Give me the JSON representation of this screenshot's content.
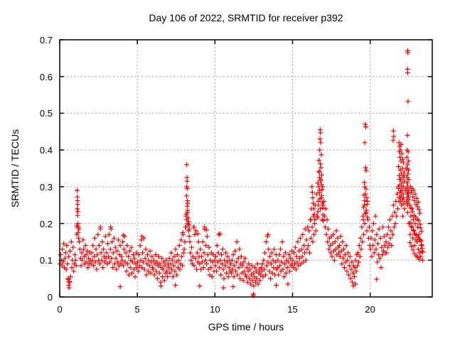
{
  "chart_data": {
    "type": "scatter",
    "title": "Day 106 of 2022, SRMTID for receiver p392",
    "xlabel": "GPS time / hours",
    "ylabel": "SRMTID / TECUs",
    "xlim": [
      0,
      24
    ],
    "ylim": [
      0,
      0.7
    ],
    "xticks": {
      "values": [
        0,
        5,
        10,
        15,
        20
      ],
      "labels": [
        "0",
        "5",
        "10",
        "15",
        "20"
      ]
    },
    "yticks": {
      "values": [
        0,
        0.1,
        0.2,
        0.3,
        0.4,
        0.5,
        0.6,
        0.7
      ],
      "labels": [
        "0",
        "0.1",
        "0.2",
        "0.3",
        "0.4",
        "0.5",
        "0.6",
        "0.7"
      ]
    },
    "grid_x": [
      5,
      10,
      15,
      20
    ],
    "grid_y": [
      0.1,
      0.2,
      0.3,
      0.4,
      0.5,
      0.6
    ],
    "grid_color": "#a0a0a0",
    "marker": {
      "shape": "plus",
      "color": "#ff0000",
      "size": 7
    },
    "points_base": {
      "x0": 0.02,
      "dx": 0.04,
      "y": [
        0.09,
        0.115,
        0.1,
        0.085,
        0.13,
        0.095,
        0.145,
        0.08,
        0.105,
        0.12,
        0.075,
        0.14,
        0.09,
        0.048,
        0.11,
        0.042,
        0.125,
        0.055,
        0.15,
        0.08,
        0.1,
        0.135,
        0.07,
        0.09,
        0.115,
        0.1,
        0.085,
        0.17,
        0.19,
        0.175,
        0.16,
        0.15,
        0.13,
        0.105,
        0.085,
        0.12,
        0.1,
        0.155,
        0.13,
        0.11,
        0.09,
        0.14,
        0.115,
        0.095,
        0.125,
        0.08,
        0.105,
        0.09,
        0.12,
        0.1,
        0.09,
        0.12,
        0.1,
        0.14,
        0.085,
        0.11,
        0.16,
        0.095,
        0.13,
        0.075,
        0.115,
        0.17,
        0.1,
        0.14,
        0.09,
        0.185,
        0.12,
        0.1,
        0.15,
        0.08,
        0.13,
        0.11,
        0.095,
        0.165,
        0.105,
        0.12,
        0.09,
        0.145,
        0.11,
        0.17,
        0.095,
        0.13,
        0.185,
        0.105,
        0.15,
        0.08,
        0.12,
        0.16,
        0.09,
        0.135,
        0.105,
        0.075,
        0.125,
        0.095,
        0.155,
        0.085,
        0.115,
        0.14,
        0.09,
        0.11,
        0.1,
        0.15,
        0.085,
        0.13,
        0.165,
        0.095,
        0.12,
        0.07,
        0.14,
        0.09,
        0.11,
        0.06,
        0.125,
        0.08,
        0.1,
        0.135,
        0.065,
        0.095,
        0.115,
        0.075,
        0.105,
        0.055,
        0.09,
        0.12,
        0.08,
        0.095,
        0.07,
        0.115,
        0.085,
        0.14,
        0.1,
        0.155,
        0.08,
        0.12,
        0.095,
        0.16,
        0.075,
        0.105,
        0.13,
        0.06,
        0.09,
        0.115,
        0.07,
        0.1,
        0.085,
        0.125,
        0.065,
        0.095,
        0.11,
        0.08,
        0.075,
        0.1,
        0.06,
        0.09,
        0.115,
        0.07,
        0.095,
        0.05,
        0.085,
        0.11,
        0.065,
        0.09,
        0.04,
        0.08,
        0.105,
        0.055,
        0.075,
        0.095,
        0.045,
        0.085,
        0.065,
        0.1,
        0.07,
        0.055,
        0.09,
        0.08,
        0.105,
        0.065,
        0.09,
        0.12,
        0.075,
        0.1,
        0.055,
        0.085,
        0.11,
        0.07,
        0.13,
        0.095,
        0.06,
        0.115,
        0.08,
        0.1,
        0.14,
        0.075,
        0.09,
        0.155,
        0.11,
        0.085,
        0.17,
        0.12,
        0.13,
        0.15,
        0.19,
        0.22,
        0.21,
        0.23,
        0.2,
        0.18,
        0.165,
        0.15,
        0.12,
        0.1,
        0.135,
        0.09,
        0.11,
        0.19,
        0.085,
        0.17,
        0.105,
        0.18,
        0.075,
        0.12,
        0.095,
        0.15,
        0.11,
        0.09,
        0.13,
        0.075,
        0.11,
        0.095,
        0.15,
        0.08,
        0.12,
        0.185,
        0.1,
        0.14,
        0.09,
        0.165,
        0.115,
        0.075,
        0.135,
        0.06,
        0.1,
        0.08,
        0.12,
        0.055,
        0.095,
        0.115,
        0.07,
        0.1,
        0.085,
        0.11,
        0.07,
        0.14,
        0.095,
        0.12,
        0.17,
        0.08,
        0.1,
        0.06,
        0.115,
        0.09,
        0.13,
        0.075,
        0.05,
        0.1,
        0.085,
        0.12,
        0.065,
        0.095,
        0.11,
        0.055,
        0.08,
        0.1,
        0.07,
        0.09,
        0.065,
        0.1,
        0.075,
        0.115,
        0.055,
        0.085,
        0.125,
        0.07,
        0.095,
        0.15,
        0.06,
        0.105,
        0.08,
        0.13,
        0.05,
        0.09,
        0.11,
        0.065,
        0.085,
        0.045,
        0.095,
        0.07,
        0.105,
        0.06,
        0.055,
        0.08,
        0.04,
        0.07,
        0.09,
        0.05,
        0.075,
        0.035,
        0.06,
        0.085,
        0.045,
        0.065,
        0.03,
        0.055,
        0.08,
        0.04,
        0.07,
        0.05,
        0.09,
        0.035,
        0.065,
        0.075,
        0.045,
        0.06,
        0.08,
        0.07,
        0.09,
        0.055,
        0.1,
        0.075,
        0.12,
        0.06,
        0.15,
        0.085,
        0.165,
        0.095,
        0.13,
        0.07,
        0.11,
        0.05,
        0.09,
        0.12,
        0.065,
        0.1,
        0.08,
        0.13,
        0.06,
        0.095,
        0.115,
        0.075,
        0.08,
        0.1,
        0.06,
        0.115,
        0.085,
        0.13,
        0.07,
        0.095,
        0.15,
        0.075,
        0.11,
        0.055,
        0.09,
        0.12,
        0.065,
        0.1,
        0.08,
        0.035,
        0.095,
        0.115,
        0.07,
        0.105,
        0.085,
        0.125,
        0.09,
        0.1,
        0.08,
        0.12,
        0.09,
        0.135,
        0.075,
        0.11,
        0.095,
        0.15,
        0.085,
        0.125,
        0.105,
        0.16,
        0.09,
        0.13,
        0.11,
        0.17,
        0.095,
        0.14,
        0.12,
        0.185,
        0.1,
        0.155,
        0.13,
        0.19,
        0.14,
        0.18,
        0.12,
        0.21,
        0.16,
        0.24,
        0.19,
        0.15,
        0.22,
        0.17,
        0.2,
        0.25,
        0.18,
        0.28,
        0.22,
        0.31,
        0.26,
        0.34,
        0.29,
        0.24,
        0.32,
        0.27,
        0.21,
        0.3,
        0.25,
        0.26,
        0.22,
        0.19,
        0.24,
        0.17,
        0.21,
        0.15,
        0.185,
        0.13,
        0.16,
        0.14,
        0.12,
        0.165,
        0.11,
        0.145,
        0.17,
        0.125,
        0.1,
        0.15,
        0.13,
        0.18,
        0.115,
        0.16,
        0.135,
        0.12,
        0.14,
        0.11,
        0.165,
        0.125,
        0.09,
        0.15,
        0.105,
        0.13,
        0.08,
        0.115,
        0.095,
        0.14,
        0.07,
        0.1,
        0.12,
        0.06,
        0.085,
        0.11,
        0.05,
        0.075,
        0.095,
        0.04,
        0.065,
        0.085,
        0.055,
        0.08,
        0.1,
        0.07,
        0.115,
        0.085,
        0.12,
        0.095,
        0.14,
        0.11,
        0.16,
        0.13,
        0.19,
        0.15,
        0.22,
        0.17,
        0.25,
        0.2,
        0.28,
        0.23,
        0.18,
        0.26,
        0.21,
        0.16,
        0.19,
        0.14,
        0.13,
        0.16,
        0.11,
        0.18,
        0.14,
        0.2,
        0.12,
        0.155,
        0.22,
        0.13,
        0.17,
        0.095,
        0.145,
        0.115,
        0.185,
        0.105,
        0.16,
        0.08,
        0.135,
        0.115,
        0.19,
        0.125,
        0.165,
        0.14,
        0.12,
        0.15,
        0.12,
        0.17,
        0.135,
        0.19,
        0.145,
        0.21,
        0.16,
        0.18,
        0.14,
        0.22,
        0.17,
        0.25,
        0.19,
        0.23,
        0.2,
        0.26,
        0.22,
        0.28,
        0.24,
        0.3,
        0.26,
        0.32,
        0.27,
        0.29,
        0.25,
        0.3,
        0.22,
        0.27,
        0.33,
        0.24,
        0.29,
        0.35,
        0.26,
        0.31,
        0.23,
        0.28,
        0.2,
        0.25,
        0.17,
        0.22,
        0.19,
        0.24,
        0.16,
        0.21,
        0.18,
        0.14,
        0.2,
        0.155,
        0.17,
        0.15,
        0.19,
        0.13,
        0.17,
        0.12,
        0.155,
        0.11,
        0.14,
        0.125,
        0.1
      ]
    },
    "points_extra": [
      [
        1.12,
        0.29
      ],
      [
        1.14,
        0.272
      ],
      [
        1.15,
        0.262
      ],
      [
        1.16,
        0.252
      ],
      [
        1.13,
        0.24
      ],
      [
        1.17,
        0.232
      ],
      [
        1.15,
        0.222
      ],
      [
        1.18,
        0.2
      ],
      [
        1.1,
        0.195
      ],
      [
        1.21,
        0.19
      ],
      [
        1.24,
        0.185
      ],
      [
        0.55,
        0.05
      ],
      [
        0.58,
        0.032
      ],
      [
        0.6,
        0.025
      ],
      [
        0.63,
        0.04
      ],
      [
        8.18,
        0.36
      ],
      [
        8.2,
        0.325
      ],
      [
        8.21,
        0.315
      ],
      [
        8.19,
        0.3
      ],
      [
        8.22,
        0.295
      ],
      [
        8.17,
        0.275
      ],
      [
        8.23,
        0.262
      ],
      [
        8.25,
        0.255
      ],
      [
        8.21,
        0.247
      ],
      [
        8.24,
        0.236
      ],
      [
        8.16,
        0.225
      ],
      [
        8.27,
        0.215
      ],
      [
        8.3,
        0.205
      ],
      [
        8.32,
        0.196
      ],
      [
        8.13,
        0.19
      ],
      [
        8.35,
        0.185
      ],
      [
        8.65,
        0.19
      ],
      [
        8.78,
        0.18
      ],
      [
        8.9,
        0.172
      ],
      [
        9.33,
        0.19
      ],
      [
        9.45,
        0.182
      ],
      [
        2.62,
        0.19
      ],
      [
        3.28,
        0.19
      ],
      [
        5.3,
        0.165
      ],
      [
        7.93,
        0.175
      ],
      [
        10.32,
        0.172
      ],
      [
        13.42,
        0.17
      ],
      [
        4.1,
        0.168
      ],
      [
        12.46,
        0.004
      ],
      [
        12.48,
        0.008
      ],
      [
        3.9,
        0.028
      ],
      [
        6.52,
        0.03
      ],
      [
        9.02,
        0.03
      ],
      [
        11.17,
        0.028
      ],
      [
        13.95,
        0.032
      ],
      [
        18.92,
        0.03
      ],
      [
        19.06,
        0.035
      ],
      [
        20.42,
        0.048
      ],
      [
        10.55,
        0.025
      ],
      [
        7.45,
        0.032
      ],
      [
        16.22,
        0.24
      ],
      [
        16.25,
        0.3
      ],
      [
        16.28,
        0.285
      ],
      [
        16.3,
        0.27
      ],
      [
        16.33,
        0.255
      ],
      [
        16.36,
        0.24
      ],
      [
        16.4,
        0.225
      ],
      [
        16.18,
        0.21
      ],
      [
        16.43,
        0.21
      ],
      [
        16.78,
        0.455
      ],
      [
        16.8,
        0.447
      ],
      [
        16.77,
        0.43
      ],
      [
        16.82,
        0.42
      ],
      [
        16.75,
        0.4
      ],
      [
        16.85,
        0.387
      ],
      [
        16.7,
        0.372
      ],
      [
        16.79,
        0.362
      ],
      [
        16.83,
        0.352
      ],
      [
        16.72,
        0.342
      ],
      [
        16.88,
        0.332
      ],
      [
        16.74,
        0.325
      ],
      [
        16.81,
        0.316
      ],
      [
        16.86,
        0.306
      ],
      [
        16.68,
        0.3
      ],
      [
        16.9,
        0.292
      ],
      [
        16.73,
        0.284
      ],
      [
        16.87,
        0.276
      ],
      [
        16.76,
        0.267
      ],
      [
        16.92,
        0.257
      ],
      [
        16.66,
        0.25
      ],
      [
        16.94,
        0.242
      ],
      [
        16.64,
        0.232
      ],
      [
        16.96,
        0.224
      ],
      [
        16.62,
        0.216
      ],
      [
        16.98,
        0.208
      ],
      [
        19.68,
        0.47
      ],
      [
        19.72,
        0.463
      ],
      [
        19.65,
        0.42
      ],
      [
        19.7,
        0.352
      ],
      [
        19.75,
        0.344
      ],
      [
        19.62,
        0.312
      ],
      [
        19.66,
        0.3
      ],
      [
        19.73,
        0.294
      ],
      [
        19.6,
        0.277
      ],
      [
        19.78,
        0.27
      ],
      [
        19.64,
        0.262
      ],
      [
        19.8,
        0.252
      ],
      [
        19.58,
        0.244
      ],
      [
        19.76,
        0.236
      ],
      [
        19.69,
        0.227
      ],
      [
        19.82,
        0.217
      ],
      [
        19.56,
        0.21
      ],
      [
        21.5,
        0.452
      ],
      [
        21.52,
        0.437
      ],
      [
        21.48,
        0.426
      ],
      [
        21.85,
        0.42
      ],
      [
        21.9,
        0.41
      ],
      [
        21.95,
        0.4
      ],
      [
        22.0,
        0.415
      ],
      [
        21.88,
        0.395
      ],
      [
        22.05,
        0.39
      ],
      [
        21.92,
        0.38
      ],
      [
        22.1,
        0.375
      ],
      [
        21.98,
        0.37
      ],
      [
        22.15,
        0.365
      ],
      [
        21.83,
        0.355
      ],
      [
        22.08,
        0.35
      ],
      [
        21.94,
        0.345
      ],
      [
        22.18,
        0.34
      ],
      [
        22.02,
        0.335
      ],
      [
        21.87,
        0.33
      ],
      [
        22.12,
        0.325
      ],
      [
        21.96,
        0.32
      ],
      [
        22.2,
        0.315
      ],
      [
        22.04,
        0.31
      ],
      [
        21.9,
        0.305
      ],
      [
        22.16,
        0.3
      ],
      [
        21.82,
        0.295
      ],
      [
        22.06,
        0.29
      ],
      [
        21.93,
        0.285
      ],
      [
        22.14,
        0.28
      ],
      [
        22.0,
        0.275
      ],
      [
        21.86,
        0.27
      ],
      [
        22.1,
        0.265
      ],
      [
        21.97,
        0.26
      ],
      [
        22.18,
        0.255
      ],
      [
        22.03,
        0.25
      ],
      [
        22.42,
        0.67
      ],
      [
        22.43,
        0.665
      ],
      [
        22.41,
        0.62
      ],
      [
        22.42,
        0.61
      ],
      [
        22.44,
        0.532
      ],
      [
        22.4,
        0.44
      ],
      [
        22.38,
        0.4
      ],
      [
        22.45,
        0.395
      ],
      [
        22.36,
        0.38
      ],
      [
        22.47,
        0.37
      ],
      [
        22.41,
        0.36
      ],
      [
        22.39,
        0.35
      ],
      [
        22.46,
        0.345
      ],
      [
        22.43,
        0.335
      ],
      [
        22.37,
        0.325
      ],
      [
        22.48,
        0.32
      ],
      [
        22.4,
        0.31
      ],
      [
        22.44,
        0.3
      ],
      [
        22.35,
        0.295
      ],
      [
        22.49,
        0.29
      ],
      [
        22.42,
        0.285
      ],
      [
        22.38,
        0.28
      ],
      [
        22.46,
        0.275
      ],
      [
        22.4,
        0.27
      ],
      [
        22.5,
        0.265
      ],
      [
        22.36,
        0.26
      ],
      [
        22.44,
        0.255
      ],
      [
        22.41,
        0.25
      ],
      [
        22.6,
        0.3
      ],
      [
        22.7,
        0.295
      ],
      [
        22.8,
        0.29
      ],
      [
        22.65,
        0.285
      ],
      [
        22.9,
        0.28
      ],
      [
        22.75,
        0.272
      ],
      [
        23.0,
        0.268
      ],
      [
        22.85,
        0.262
      ],
      [
        23.1,
        0.258
      ],
      [
        22.95,
        0.252
      ],
      [
        23.05,
        0.246
      ],
      [
        22.62,
        0.242
      ],
      [
        23.15,
        0.238
      ],
      [
        22.72,
        0.232
      ],
      [
        23.2,
        0.228
      ],
      [
        22.82,
        0.222
      ],
      [
        22.92,
        0.218
      ],
      [
        23.02,
        0.212
      ],
      [
        23.12,
        0.208
      ],
      [
        22.58,
        0.202
      ],
      [
        23.22,
        0.198
      ],
      [
        22.68,
        0.192
      ],
      [
        23.26,
        0.188
      ],
      [
        22.78,
        0.182
      ],
      [
        23.3,
        0.178
      ],
      [
        22.88,
        0.172
      ],
      [
        22.98,
        0.168
      ],
      [
        23.08,
        0.162
      ],
      [
        23.18,
        0.158
      ],
      [
        23.28,
        0.152
      ],
      [
        22.56,
        0.148
      ],
      [
        23.32,
        0.142
      ],
      [
        22.66,
        0.138
      ],
      [
        23.35,
        0.132
      ],
      [
        22.76,
        0.128
      ],
      [
        23.38,
        0.122
      ],
      [
        22.86,
        0.118
      ],
      [
        22.96,
        0.112
      ],
      [
        23.06,
        0.108
      ],
      [
        23.16,
        0.102
      ]
    ]
  }
}
